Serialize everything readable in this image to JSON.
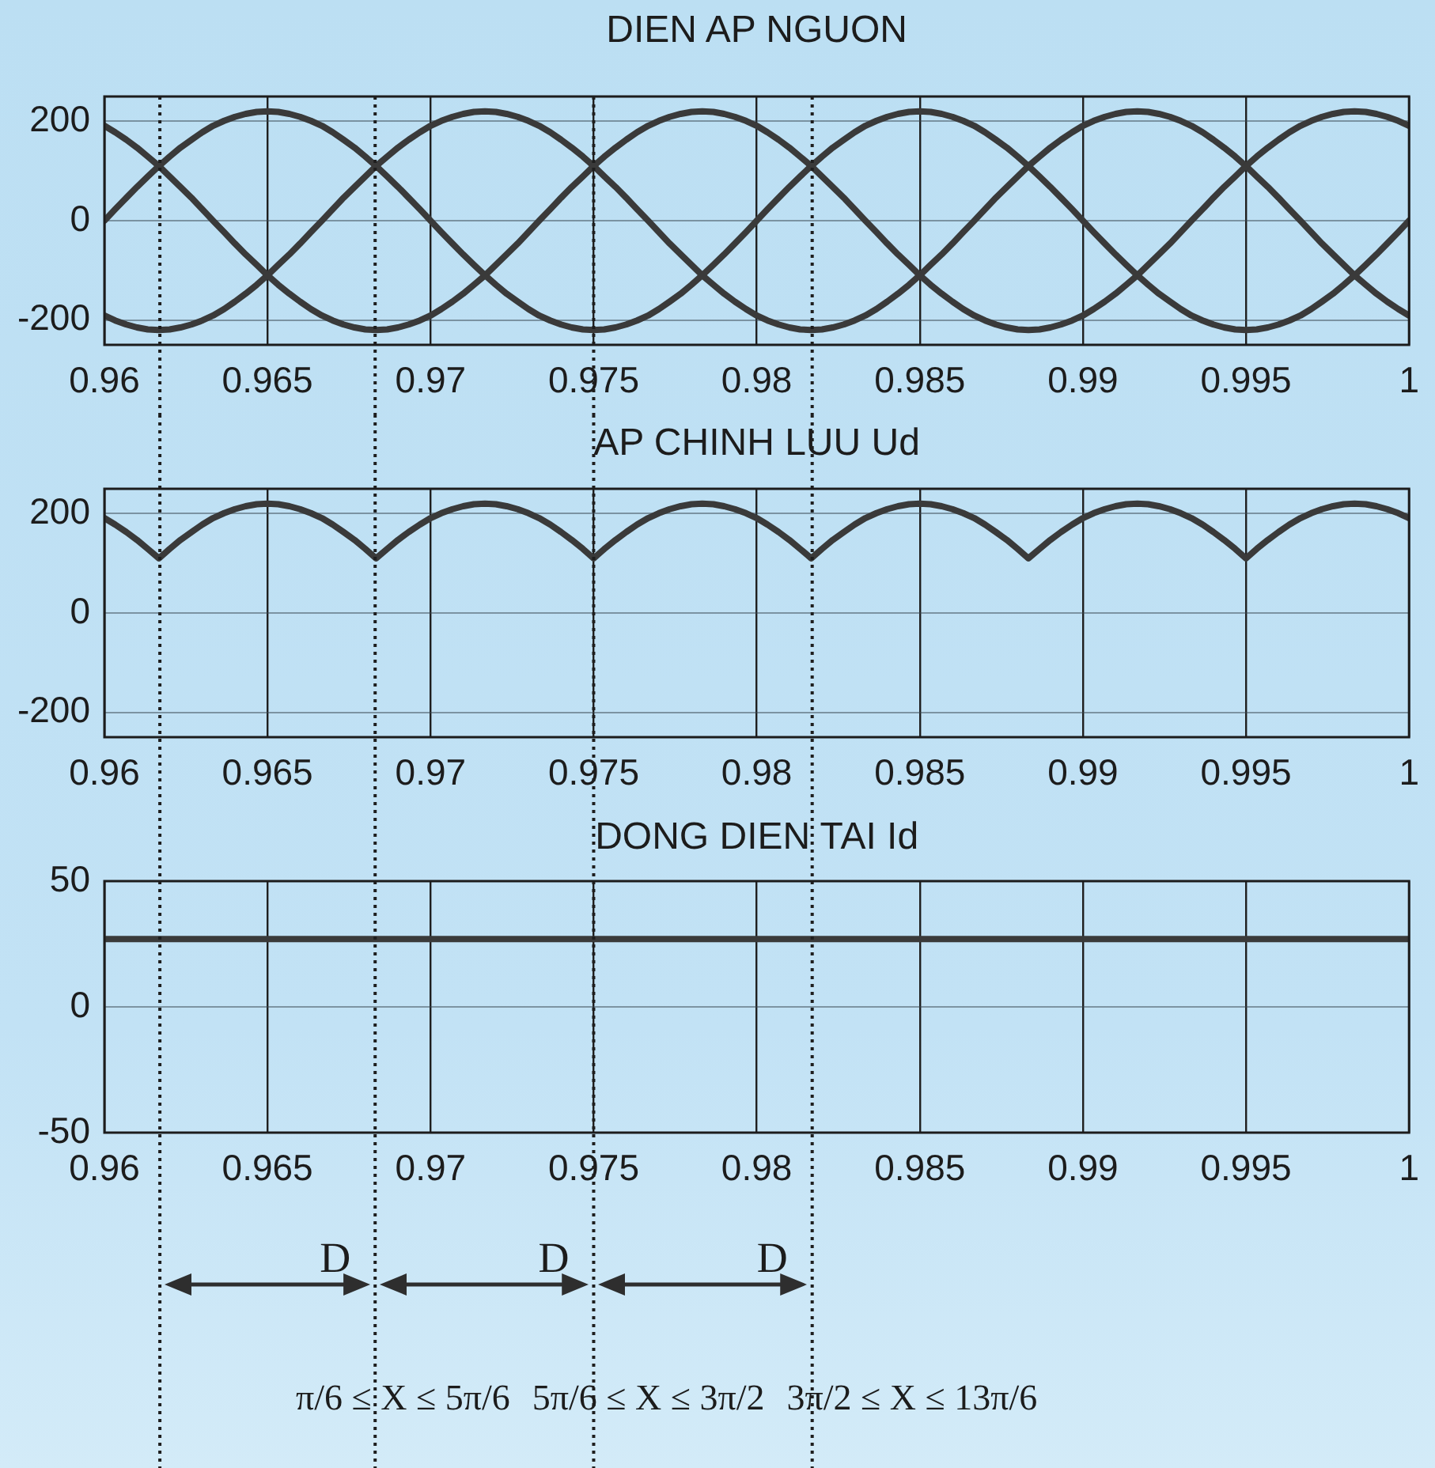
{
  "chart_data": [
    {
      "type": "line",
      "title": "DIEN AP NGUON",
      "x": [
        0.96,
        0.96033,
        0.96067,
        0.961,
        0.96133,
        0.96167,
        0.962,
        0.96233,
        0.96267,
        0.963,
        0.96333,
        0.96367,
        0.964,
        0.96433,
        0.96467,
        0.965,
        0.96533,
        0.96567,
        0.966,
        0.96633,
        0.96667,
        0.967,
        0.96733,
        0.96767,
        0.968,
        0.96833,
        0.96867,
        0.969,
        0.96933,
        0.96967,
        0.97,
        0.97033,
        0.97067,
        0.971,
        0.97133,
        0.97167,
        0.972,
        0.97233,
        0.97267,
        0.973,
        0.97333,
        0.97367,
        0.974,
        0.97433,
        0.97467,
        0.975,
        0.97533,
        0.97567,
        0.976,
        0.97633,
        0.97667,
        0.977,
        0.97733,
        0.97767,
        0.978,
        0.97833,
        0.97867,
        0.979,
        0.97933,
        0.97967,
        0.98,
        0.98033,
        0.98067,
        0.981,
        0.98133,
        0.98167,
        0.982,
        0.98233,
        0.98267,
        0.983,
        0.98333,
        0.98367,
        0.984,
        0.98433,
        0.98467,
        0.985,
        0.98533,
        0.98567,
        0.986,
        0.98633,
        0.98667,
        0.987,
        0.98733,
        0.98767,
        0.988,
        0.98833,
        0.98867,
        0.989,
        0.98933,
        0.98967,
        0.99,
        0.99033,
        0.99067,
        0.991,
        0.99133,
        0.99167,
        0.992,
        0.99233,
        0.99267,
        0.993,
        0.99333,
        0.99367,
        0.994,
        0.99433,
        0.99467,
        0.995,
        0.99533,
        0.99567,
        0.996,
        0.99633,
        0.99667,
        0.997,
        0.99733,
        0.99767,
        0.998,
        0.99833,
        0.99867,
        0.999,
        0.99933,
        0.99967,
        1
      ],
      "series": [
        {
          "color": "#3a3a3a",
          "values": [
            0,
            23,
            46,
            68,
            89,
            110,
            129,
            147,
            163,
            178,
            191,
            201,
            209,
            215,
            219,
            220,
            219,
            215,
            209,
            201,
            191,
            178,
            163,
            147,
            129,
            110,
            89,
            68,
            46,
            23,
            0,
            -23,
            -46,
            -68,
            -89,
            -110,
            -129,
            -147,
            -163,
            -178,
            -191,
            -201,
            -209,
            -215,
            -219,
            -220,
            -219,
            -215,
            -209,
            -201,
            -191,
            -178,
            -163,
            -147,
            -129,
            -110,
            -89,
            -68,
            -46,
            -23,
            0,
            23,
            46,
            68,
            89,
            110,
            129,
            147,
            163,
            178,
            191,
            201,
            209,
            215,
            219,
            220,
            219,
            215,
            209,
            201,
            191,
            178,
            163,
            147,
            129,
            110,
            89,
            68,
            46,
            23,
            0,
            -23,
            -46,
            -68,
            -89,
            -110,
            -129,
            -147,
            -163,
            -178,
            -191,
            -201,
            -209,
            -215,
            -219,
            -220,
            -219,
            -215,
            -209,
            -201,
            -191,
            -178,
            -163,
            -147,
            -129,
            -110,
            -89,
            -68,
            -46,
            -23,
            0
          ]
        },
        {
          "color": "#3a3a3a",
          "values": [
            191,
            178,
            163,
            147,
            129,
            110,
            89,
            68,
            46,
            23,
            0,
            -23,
            -46,
            -68,
            -89,
            -110,
            -129,
            -147,
            -163,
            -178,
            -191,
            -201,
            -209,
            -215,
            -219,
            -220,
            -219,
            -215,
            -209,
            -201,
            -191,
            -178,
            -163,
            -147,
            -129,
            -110,
            -89,
            -68,
            -46,
            -23,
            0,
            23,
            46,
            68,
            89,
            110,
            129,
            147,
            163,
            178,
            191,
            201,
            209,
            215,
            219,
            220,
            219,
            215,
            209,
            201,
            191,
            178,
            163,
            147,
            129,
            110,
            89,
            68,
            46,
            23,
            0,
            -23,
            -46,
            -68,
            -89,
            -110,
            -129,
            -147,
            -163,
            -178,
            -191,
            -201,
            -209,
            -215,
            -219,
            -220,
            -219,
            -215,
            -209,
            -201,
            -191,
            -178,
            -163,
            -147,
            -129,
            -110,
            -89,
            -68,
            -46,
            -23,
            0,
            23,
            46,
            68,
            89,
            110,
            129,
            147,
            163,
            178,
            191,
            201,
            209,
            215,
            219,
            220,
            219,
            215,
            209,
            201,
            191
          ]
        },
        {
          "color": "#3a3a3a",
          "values": [
            -191,
            -201,
            -209,
            -215,
            -219,
            -220,
            -219,
            -215,
            -209,
            -201,
            -191,
            -178,
            -163,
            -147,
            -129,
            -110,
            -89,
            -68,
            -46,
            -23,
            0,
            23,
            46,
            68,
            89,
            110,
            129,
            147,
            163,
            178,
            191,
            201,
            209,
            215,
            219,
            220,
            219,
            215,
            209,
            201,
            191,
            178,
            163,
            147,
            129,
            110,
            89,
            68,
            46,
            23,
            0,
            -23,
            -46,
            -68,
            -89,
            -110,
            -129,
            -147,
            -163,
            -178,
            -191,
            -201,
            -209,
            -215,
            -219,
            -220,
            -219,
            -215,
            -209,
            -201,
            -191,
            -178,
            -163,
            -147,
            -129,
            -110,
            -89,
            -68,
            -46,
            -23,
            0,
            23,
            46,
            68,
            89,
            110,
            129,
            147,
            163,
            178,
            191,
            201,
            209,
            215,
            219,
            220,
            219,
            215,
            209,
            201,
            191,
            178,
            163,
            147,
            129,
            110,
            89,
            68,
            46,
            23,
            0,
            -23,
            -46,
            -68,
            -89,
            -110,
            -129,
            -147,
            -163,
            -178,
            -191
          ]
        }
      ],
      "xlim": [
        0.96,
        1
      ],
      "xticks": [
        0.96,
        0.965,
        0.97,
        0.975,
        0.98,
        0.985,
        0.99,
        0.995,
        1
      ],
      "ylim": [
        -250,
        250
      ],
      "yticks": [
        -200,
        0,
        200
      ],
      "grid": true,
      "ref_lines": [
        {
          "axis": "x",
          "value": 0.9617,
          "color": "#1e1e1e",
          "line_style": "dotted"
        },
        {
          "axis": "x",
          "value": 0.9683,
          "color": "#1e1e1e",
          "line_style": "dotted"
        },
        {
          "axis": "x",
          "value": 0.975,
          "color": "#1e1e1e",
          "line_style": "dotted"
        },
        {
          "axis": "x",
          "value": 0.9817,
          "color": "#1e1e1e",
          "line_style": "dotted"
        }
      ]
    },
    {
      "type": "line",
      "title": "AP CHINH LUU Ud",
      "x": [
        0.96,
        0.96033,
        0.96067,
        0.961,
        0.96133,
        0.96167,
        0.962,
        0.96233,
        0.96267,
        0.963,
        0.96333,
        0.96367,
        0.964,
        0.96433,
        0.96467,
        0.965,
        0.96533,
        0.96567,
        0.966,
        0.96633,
        0.96667,
        0.967,
        0.96733,
        0.96767,
        0.968,
        0.96833,
        0.96867,
        0.969,
        0.96933,
        0.96967,
        0.97,
        0.97033,
        0.97067,
        0.971,
        0.97133,
        0.97167,
        0.972,
        0.97233,
        0.97267,
        0.973,
        0.97333,
        0.97367,
        0.974,
        0.97433,
        0.97467,
        0.975,
        0.97533,
        0.97567,
        0.976,
        0.97633,
        0.97667,
        0.977,
        0.97733,
        0.97767,
        0.978,
        0.97833,
        0.97867,
        0.979,
        0.97933,
        0.97967,
        0.98,
        0.98033,
        0.98067,
        0.981,
        0.98133,
        0.98167,
        0.982,
        0.98233,
        0.98267,
        0.983,
        0.98333,
        0.98367,
        0.984,
        0.98433,
        0.98467,
        0.985,
        0.98533,
        0.98567,
        0.986,
        0.98633,
        0.98667,
        0.987,
        0.98733,
        0.98767,
        0.988,
        0.98833,
        0.98867,
        0.989,
        0.98933,
        0.98967,
        0.99,
        0.99033,
        0.99067,
        0.991,
        0.99133,
        0.99167,
        0.992,
        0.99233,
        0.99267,
        0.993,
        0.99333,
        0.99367,
        0.994,
        0.99433,
        0.99467,
        0.995,
        0.99533,
        0.99567,
        0.996,
        0.99633,
        0.99667,
        0.997,
        0.99733,
        0.99767,
        0.998,
        0.99833,
        0.99867,
        0.999,
        0.99933,
        0.99967,
        1
      ],
      "values": [
        191,
        178,
        163,
        147,
        129,
        110,
        129,
        147,
        163,
        178,
        191,
        201,
        209,
        215,
        219,
        220,
        219,
        215,
        209,
        201,
        191,
        178,
        163,
        147,
        129,
        110,
        129,
        147,
        163,
        178,
        191,
        201,
        209,
        215,
        219,
        220,
        219,
        215,
        209,
        201,
        191,
        178,
        163,
        147,
        129,
        110,
        129,
        147,
        163,
        178,
        191,
        201,
        209,
        215,
        219,
        220,
        219,
        215,
        209,
        201,
        191,
        178,
        163,
        147,
        129,
        110,
        129,
        147,
        163,
        178,
        191,
        201,
        209,
        215,
        219,
        220,
        219,
        215,
        209,
        201,
        191,
        178,
        163,
        147,
        129,
        110,
        129,
        147,
        163,
        178,
        191,
        201,
        209,
        215,
        219,
        220,
        219,
        215,
        209,
        201,
        191,
        178,
        163,
        147,
        129,
        110,
        129,
        147,
        163,
        178,
        191,
        201,
        209,
        215,
        219,
        220,
        219,
        215,
        209,
        201,
        191
      ],
      "color": "#3a3a3a",
      "xlim": [
        0.96,
        1
      ],
      "xticks": [
        0.96,
        0.965,
        0.97,
        0.975,
        0.98,
        0.985,
        0.99,
        0.995,
        1
      ],
      "ylim": [
        -250,
        250
      ],
      "yticks": [
        -200,
        0,
        200
      ],
      "grid": true,
      "ref_lines": [
        {
          "axis": "x",
          "value": 0.9617,
          "color": "#1e1e1e",
          "line_style": "dotted"
        },
        {
          "axis": "x",
          "value": 0.9683,
          "color": "#1e1e1e",
          "line_style": "dotted"
        },
        {
          "axis": "x",
          "value": 0.975,
          "color": "#1e1e1e",
          "line_style": "dotted"
        },
        {
          "axis": "x",
          "value": 0.9817,
          "color": "#1e1e1e",
          "line_style": "dotted"
        }
      ]
    },
    {
      "type": "line",
      "title": "DONG DIEN TAI Id",
      "x": [
        0.96,
        0.965,
        0.97,
        0.975,
        0.98,
        0.985,
        0.99,
        0.995,
        1
      ],
      "values": [
        27,
        27,
        27,
        27,
        27,
        27,
        27,
        27,
        27
      ],
      "color": "#3a3a3a",
      "xlim": [
        0.96,
        1
      ],
      "xticks": [
        0.96,
        0.965,
        0.97,
        0.975,
        0.98,
        0.985,
        0.99,
        0.995,
        1
      ],
      "ylim": [
        -50,
        50
      ],
      "yticks": [
        -50,
        0,
        50
      ],
      "grid": true,
      "ref_lines": [
        {
          "axis": "x",
          "value": 0.9617,
          "color": "#1e1e1e",
          "line_style": "dotted"
        },
        {
          "axis": "x",
          "value": 0.9683,
          "color": "#1e1e1e",
          "line_style": "dotted"
        },
        {
          "axis": "x",
          "value": 0.975,
          "color": "#1e1e1e",
          "line_style": "dotted"
        },
        {
          "axis": "x",
          "value": 0.9817,
          "color": "#1e1e1e",
          "line_style": "dotted"
        }
      ],
      "annotations": [
        "D",
        "D",
        "D",
        "π/6 ≤ X ≤ 5π/6",
        "5π/6 ≤ X ≤ 3π/2",
        "3π/2 ≤ X ≤ 13π/6"
      ]
    }
  ]
}
